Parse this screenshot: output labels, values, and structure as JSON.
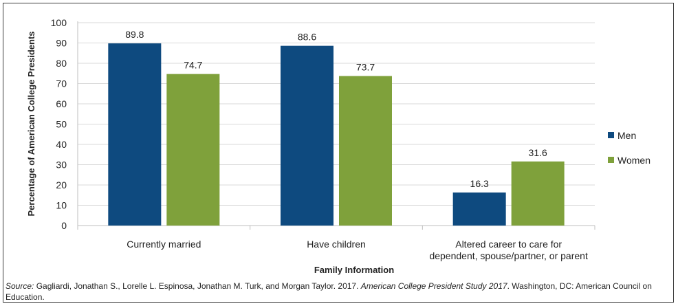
{
  "colors": {
    "men": "#0e4a7f",
    "women": "#7fa13b",
    "grid": "#d9d9d9",
    "axis": "#bfbfbf"
  },
  "chart_data": {
    "type": "bar",
    "title": "",
    "xlabel": "Family Information",
    "ylabel": "Percentage of American College Presidents",
    "ylim": [
      0,
      100
    ],
    "yticks": [
      0,
      10,
      20,
      30,
      40,
      50,
      60,
      70,
      80,
      90,
      100
    ],
    "grid": true,
    "legend_position": "right",
    "categories": [
      [
        "Currently married"
      ],
      [
        "Have children"
      ],
      [
        "Altered career to care for",
        "dependent, spouse/partner, or parent"
      ]
    ],
    "series": [
      {
        "name": "Men",
        "values": [
          89.8,
          88.6,
          16.3
        ]
      },
      {
        "name": "Women",
        "values": [
          74.7,
          73.7,
          31.6
        ]
      }
    ]
  },
  "source": {
    "prefix": "Source:",
    "authors": " Gagliardi, Jonathan S., Lorelle L. Espinosa, Jonathan M. Turk, and Morgan Taylor. 2017. ",
    "work": "American College President Study 2017",
    "rest": ". Washington, DC: American Council on Education."
  }
}
